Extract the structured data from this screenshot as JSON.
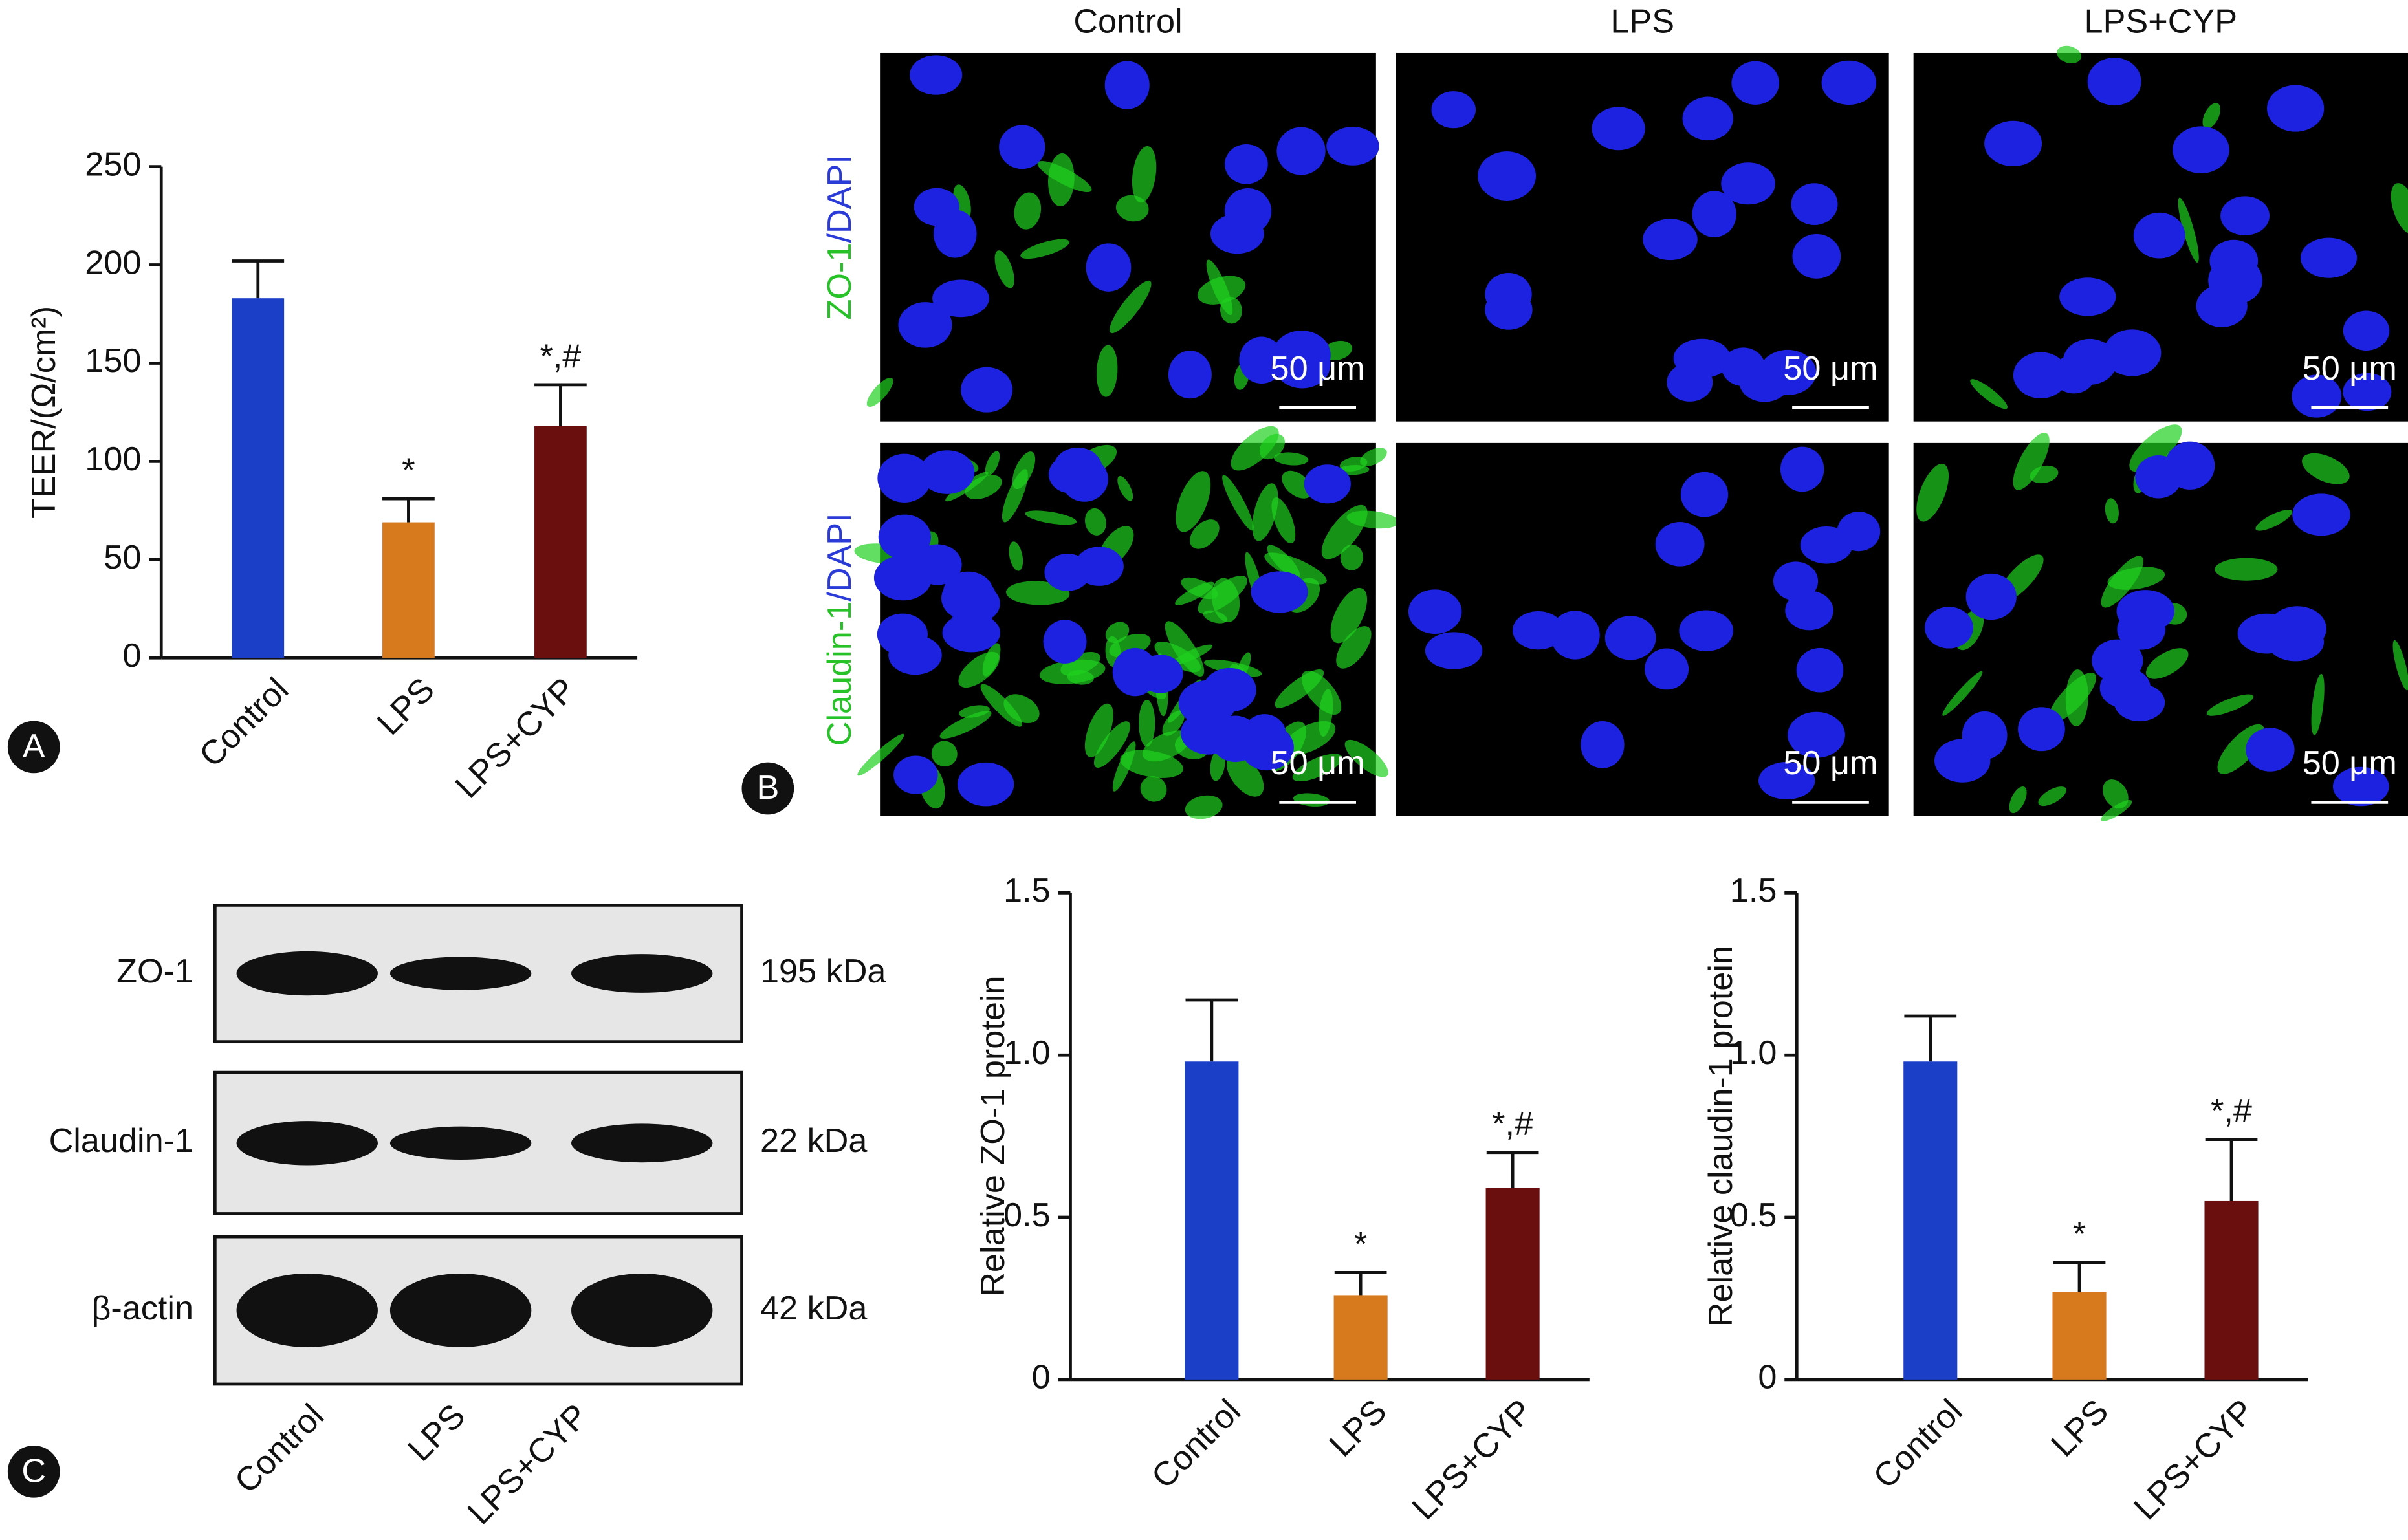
{
  "chart_data": [
    {
      "type": "bar",
      "y_label": "TEER/(Ω/cm²)",
      "categories": [
        "Control",
        "LPS",
        "LPS+CYP"
      ],
      "values": [
        183,
        69,
        118
      ],
      "errors": [
        19,
        12,
        21
      ],
      "annotations": [
        null,
        "*",
        "*,#"
      ],
      "colors": [
        "#1b3fc6",
        "#d77a1e",
        "#6a0e0e"
      ],
      "ylim": [
        0,
        250
      ],
      "yticks": [
        0,
        50,
        100,
        150,
        200,
        250
      ]
    },
    {
      "type": "bar",
      "y_label": "Relative ZO-1 protein",
      "categories": [
        "Control",
        "LPS",
        "LPS+CYP"
      ],
      "values": [
        0.98,
        0.26,
        0.59
      ],
      "errors": [
        0.19,
        0.07,
        0.11
      ],
      "annotations": [
        null,
        "*",
        "*,#"
      ],
      "colors": [
        "#1b3fc6",
        "#d77a1e",
        "#6a0e0e"
      ],
      "ylim": [
        0,
        1.5
      ],
      "yticks": [
        0,
        0.5,
        {
          "value": 1,
          "label": "1.0"
        },
        1.5
      ]
    },
    {
      "type": "bar",
      "y_label": "Relative claudin-1 protein",
      "categories": [
        "Control",
        "LPS",
        "LPS+CYP"
      ],
      "values": [
        0.98,
        0.27,
        0.55
      ],
      "errors": [
        0.14,
        0.09,
        0.19
      ],
      "annotations": [
        null,
        "*",
        "*,#"
      ],
      "colors": [
        "#1b3fc6",
        "#d77a1e",
        "#6a0e0e"
      ],
      "ylim": [
        0,
        1.5
      ],
      "yticks": [
        0,
        0.5,
        {
          "value": 1,
          "label": "1.0"
        },
        1.5
      ]
    }
  ],
  "panels": [
    "A",
    "B",
    "C"
  ],
  "micrographs": {
    "columns": [
      "Control",
      "LPS",
      "LPS+CYP"
    ],
    "rows": [
      [
        "ZO-1",
        "/DAPI"
      ],
      [
        "Claudin-1",
        "/DAPI"
      ]
    ],
    "scale_bar": "50 μm"
  },
  "western_blot": {
    "proteins": [
      "ZO-1",
      "Claudin-1",
      "β-actin"
    ],
    "sizes": [
      "195 kDa",
      "22 kDa",
      "42 kDa"
    ],
    "lanes": [
      "Control",
      "LPS",
      "LPS+CYP"
    ]
  }
}
